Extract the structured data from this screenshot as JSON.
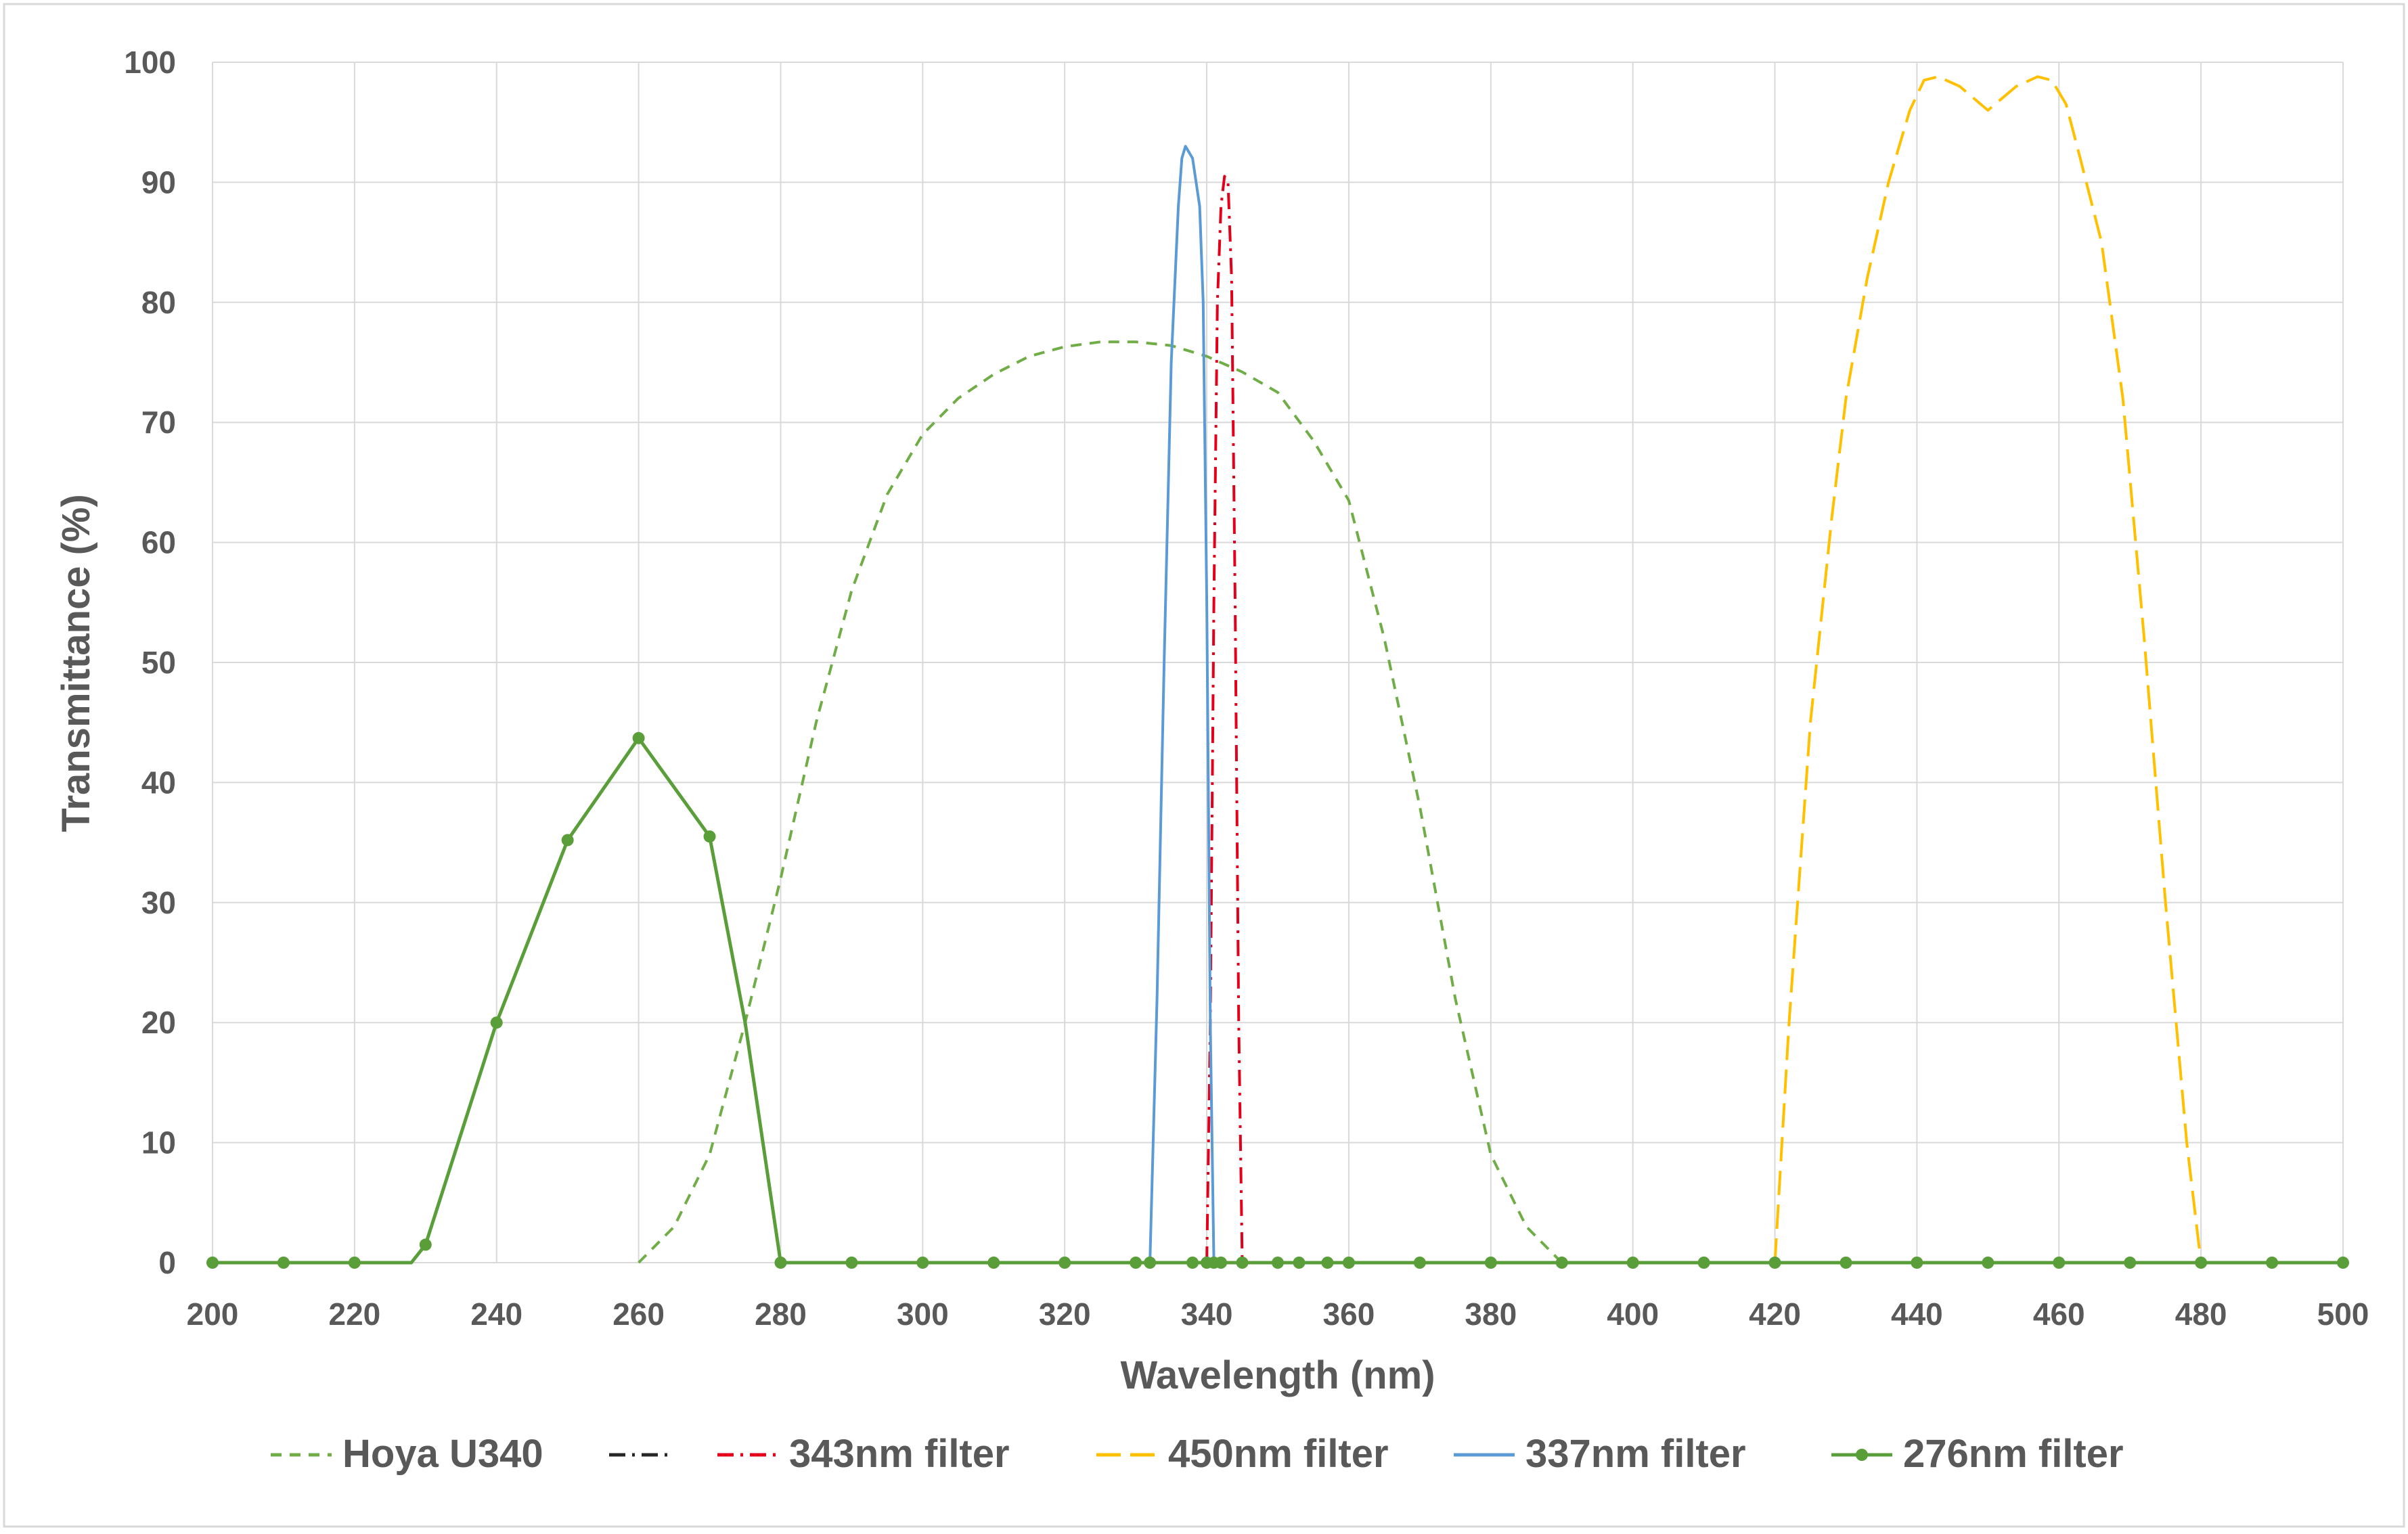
{
  "chart_data": {
    "type": "line",
    "title": "",
    "xlabel": "Wavelength (nm)",
    "ylabel": "Transmittance (%)",
    "xlim": [
      200,
      500
    ],
    "ylim": [
      0,
      100
    ],
    "x_ticks": [
      200,
      220,
      240,
      260,
      280,
      300,
      320,
      340,
      360,
      380,
      400,
      420,
      440,
      460,
      480,
      500
    ],
    "y_ticks": [
      0,
      10,
      20,
      30,
      40,
      50,
      60,
      70,
      80,
      90,
      100
    ],
    "x_tick_labels": [
      "200",
      "220",
      "240",
      "260",
      "280",
      "300",
      "320",
      "340",
      "360",
      "380",
      "400",
      "420",
      "440",
      "460",
      "480",
      "500"
    ],
    "y_tick_labels": [
      "0",
      "10",
      "20",
      "30",
      "40",
      "50",
      "60",
      "70",
      "80",
      "90",
      "100"
    ],
    "grid": "major, both axes",
    "legend": "bottom",
    "series": [
      {
        "name": "Hoya U340",
        "color": "#70ad47",
        "dash": "short-dash",
        "x": [
          260,
          265,
          270,
          275,
          280,
          285,
          290,
          295,
          300,
          305,
          310,
          315,
          320,
          325,
          330,
          335,
          340,
          345,
          350,
          355,
          360,
          365,
          370,
          375,
          380,
          385,
          390
        ],
        "y": [
          0,
          3,
          9,
          20,
          32,
          45,
          56,
          64,
          69,
          72,
          74,
          75.5,
          76.3,
          76.7,
          76.7,
          76.4,
          75.5,
          74.2,
          72.5,
          68.5,
          63.5,
          52,
          38,
          22,
          9,
          3,
          0
        ]
      },
      {
        "name": "",
        "color": "#262626",
        "dash": "dash-dot",
        "x": [],
        "y": []
      },
      {
        "name": "343nm filter",
        "color": "#e2001a",
        "dash": "dash-dot",
        "x": [
          340,
          340.5,
          341,
          341.5,
          342,
          342.5,
          343,
          343.5,
          344,
          344.5,
          345
        ],
        "y": [
          0,
          20,
          55,
          80,
          88,
          90.5,
          90,
          82,
          55,
          20,
          0
        ]
      },
      {
        "name": "450nm filter",
        "color": "#ffc000",
        "dash": "long-dash",
        "x": [
          420,
          422,
          425,
          428,
          430,
          433,
          436,
          439,
          441,
          443,
          446,
          450,
          454,
          457,
          459,
          461,
          463,
          466,
          469,
          472,
          475,
          478,
          480
        ],
        "y": [
          0,
          20,
          45,
          62,
          72,
          82,
          90,
          96,
          98.5,
          98.8,
          98,
          96,
          98,
          98.8,
          98.5,
          96.5,
          92,
          85,
          72,
          52,
          30,
          10,
          0
        ]
      },
      {
        "name": "337nm filter",
        "color": "#5b9bd5",
        "dash": "solid",
        "x": [
          332,
          333,
          334,
          335,
          336,
          336.5,
          337,
          338,
          339,
          339.5,
          340,
          340.5,
          341
        ],
        "y": [
          0,
          22,
          50,
          75,
          88,
          92,
          93,
          92,
          88,
          80,
          55,
          20,
          0
        ]
      },
      {
        "name": "276nm filter",
        "color": "#5a9e3a",
        "dash": "solid-marker",
        "x": [
          200,
          210,
          220,
          228,
          230,
          240,
          250,
          260,
          270,
          275,
          280,
          290,
          300,
          310,
          320,
          330,
          332,
          338,
          340,
          341,
          342,
          345,
          350,
          353,
          357,
          360,
          370,
          380,
          390,
          400,
          410,
          420,
          430,
          440,
          450,
          460,
          470,
          480,
          490,
          500
        ],
        "y": [
          0,
          0,
          0,
          0,
          1.5,
          20,
          35.2,
          43.7,
          35.5,
          20,
          0,
          0,
          0,
          0,
          0,
          0,
          0,
          0,
          0,
          0,
          0,
          0,
          0,
          0,
          0,
          0,
          0,
          0,
          0,
          0,
          0,
          0,
          0,
          0,
          0,
          0,
          0,
          0,
          0,
          0
        ],
        "markers_x": [
          200,
          210,
          220,
          230,
          240,
          250,
          260,
          270,
          280,
          290,
          300,
          310,
          320,
          330,
          332,
          338,
          340,
          341,
          342,
          345,
          350,
          353,
          357,
          360,
          370,
          380,
          390,
          400,
          410,
          420,
          430,
          440,
          450,
          460,
          470,
          480,
          490,
          500
        ]
      }
    ]
  }
}
